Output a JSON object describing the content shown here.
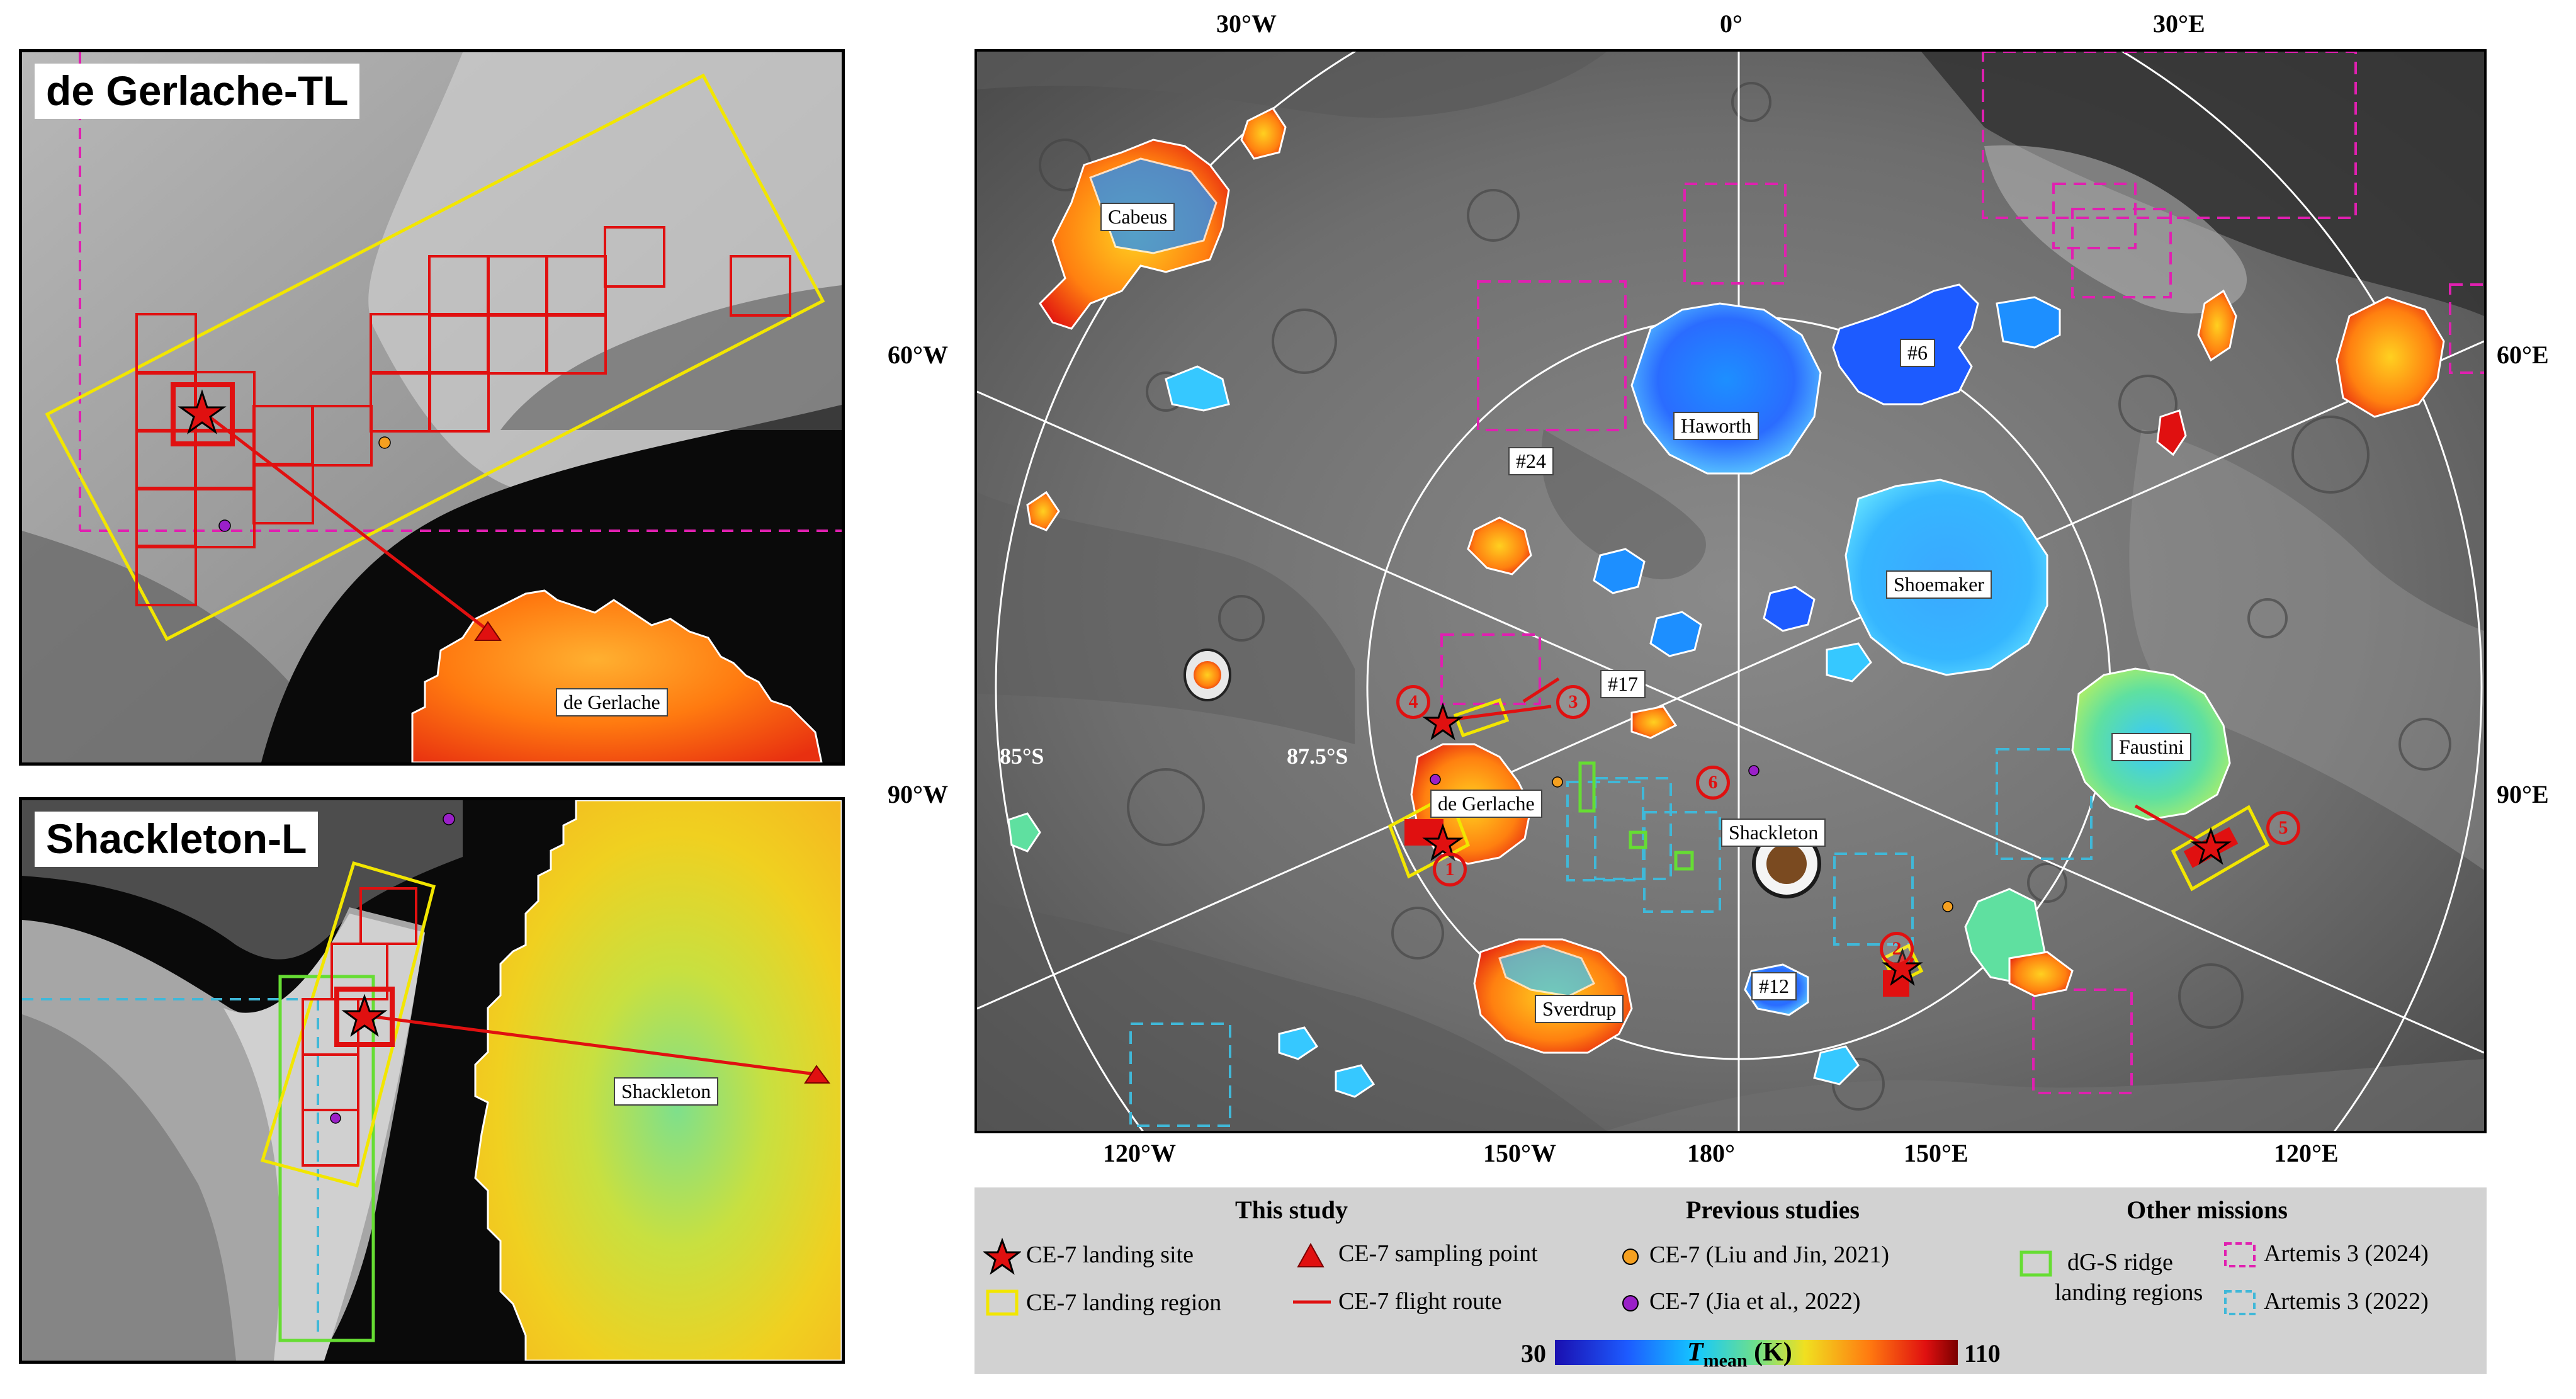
{
  "panels": {
    "top_left": {
      "title": "de Gerlache-TL",
      "crater_label": "de Gerlache"
    },
    "bottom_left": {
      "title": "Shackleton-L",
      "crater_label": "Shackleton"
    }
  },
  "main_map": {
    "top_longitudes": [
      "30°W",
      "0°",
      "30°E"
    ],
    "bottom_longitudes": [
      "120°W",
      "150°W",
      "180°",
      "150°E",
      "120°E"
    ],
    "left_longitudes": [
      "60°W",
      "90°W"
    ],
    "right_longitudes": [
      "60°E",
      "90°E"
    ],
    "latitude_rings": [
      "85°S",
      "87.5°S"
    ],
    "craters": {
      "cabeus": "Cabeus",
      "haworth": "Haworth",
      "shoemaker": "Shoemaker",
      "faustini": "Faustini",
      "de_gerlache": "de Gerlache",
      "shackleton": "Shackleton",
      "sverdrup": "Sverdrup",
      "r6": "#6",
      "r24": "#24",
      "r17": "#17",
      "r12": "#12"
    },
    "site_numbers": [
      "1",
      "2",
      "3",
      "4",
      "5",
      "6"
    ]
  },
  "legend": {
    "headers": {
      "this_study": "This study",
      "previous": "Previous studies",
      "other": "Other missions"
    },
    "items": {
      "landing_site": "CE-7 landing site",
      "sampling_point": "CE-7 sampling point",
      "landing_region": "CE-7 landing region",
      "flight_route": "CE-7 flight route",
      "liu_jin": "CE-7 (Liu and Jin, 2021)",
      "jia": "CE-7 (Jia et al., 2022)",
      "dgs_line1": "dG-S ridge",
      "dgs_line2": "landing regions",
      "artemis_2024": "Artemis 3 (2024)",
      "artemis_2022": "Artemis 3 (2022)"
    },
    "colorbar": {
      "min": "30",
      "max": "110",
      "var": "T",
      "sub": "mean",
      "unit": "(K)"
    }
  },
  "colors": {
    "landing_region": "#f2e600",
    "cell": "#e01010",
    "artemis_2024": "#e020b0",
    "artemis_2022": "#40b8d8",
    "dgs": "#66dd33",
    "liu_jin_dot": "#f5a020",
    "jia_dot": "#9a20c8"
  },
  "icons": [
    "red-star-icon",
    "red-triangle-icon",
    "yellow-rect-icon",
    "red-line-icon",
    "orange-dot-icon",
    "purple-dot-icon",
    "green-rect-icon",
    "magenta-dashed-rect-icon",
    "cyan-dashed-rect-icon"
  ]
}
